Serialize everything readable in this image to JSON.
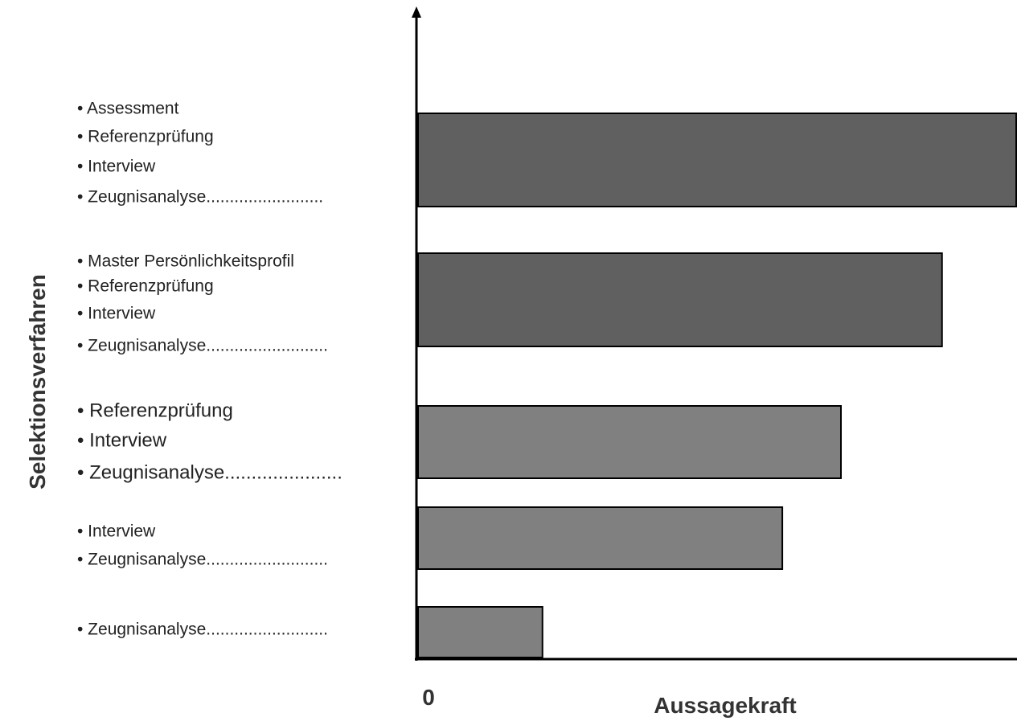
{
  "chart_data": {
    "type": "bar",
    "orientation": "horizontal",
    "xlabel": "Aussagekraft",
    "ylabel": "Selektionsverfahren",
    "x_tick_labels": [
      "0"
    ],
    "xlim": [
      0,
      100
    ],
    "grid": false,
    "legend": "none",
    "categories": [
      {
        "lines": [
          "• Assessment",
          "• Referenzprüfung",
          "• Interview",
          "• Zeugnisanalyse........................."
        ],
        "value": 100,
        "color": "#606060"
      },
      {
        "lines": [
          "• Master Persönlichkeitsprofil",
          "• Referenzprüfung",
          "• Interview",
          "• Zeugnisanalyse.........................."
        ],
        "value": 87.6,
        "color": "#606060"
      },
      {
        "lines": [
          "• Referenzprüfung",
          "• Interview",
          "• Zeugnisanalyse......................"
        ],
        "value": 70.7,
        "color": "#808080"
      },
      {
        "lines": [
          "• Interview",
          "• Zeugnisanalyse.........................."
        ],
        "value": 60.9,
        "color": "#808080"
      },
      {
        "lines": [
          "• Zeugnisanalyse.........................."
        ],
        "value": 20.8,
        "color": "#808080"
      }
    ]
  }
}
